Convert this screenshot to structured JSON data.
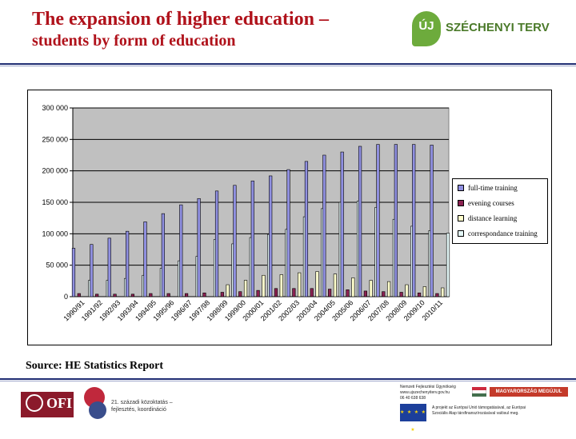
{
  "header": {
    "title_line1": "The expansion of higher education –",
    "title_line2": "students by form of education",
    "brand_mark": "ÚJ",
    "brand_name": "SZÉCHENYI TERV"
  },
  "source_text": "Source: HE Statistics Report",
  "footer": {
    "ofi_text": "OFI",
    "k21_line1": "21. századi közoktatás –",
    "k21_line2": "fejlesztés, koordináció",
    "nfu_lines": [
      "Nemzeti Fejlesztési Ügynökség",
      "www.ujszechenyiterv.gov.hu",
      "06 40 638 638"
    ],
    "hu_banner": "MAGYARORSZÁG MEGÚJUL",
    "hu_flag_colors": [
      "#cd2a3e",
      "#ffffff",
      "#436f4d"
    ],
    "eu_stars": "★ ★ ★ ★ ★",
    "eu_lines": [
      "A projekt az Európai Unió támogatásával, az Európai",
      "Szociális Alap társfinanszírozásával valósul meg."
    ]
  },
  "chart_data": {
    "type": "bar",
    "title": "",
    "xlabel": "",
    "ylabel": "",
    "ylim": [
      0,
      300000
    ],
    "yticks": [
      0,
      50000,
      100000,
      150000,
      200000,
      250000,
      300000
    ],
    "ytick_labels": [
      "0",
      "50 000",
      "100 000",
      "150 000",
      "200 000",
      "250 000",
      "300 000"
    ],
    "grid": "horizontal",
    "plot_background": "#c0c0c0",
    "legend_position": "right",
    "categories": [
      "1990/91",
      "1991/92",
      "1992/93",
      "1993/94",
      "1994/95",
      "1995/96",
      "1996/97",
      "1997/98",
      "1998/99",
      "1999/00",
      "2000/01",
      "2001/02",
      "2002/03",
      "2003/04",
      "2004/05",
      "2005/06",
      "2006/07",
      "2007/08",
      "2008/09",
      "2009/10",
      "2010/11"
    ],
    "series": [
      {
        "name": "full-time training",
        "color": "#8f8fe0",
        "values": [
          77000,
          83000,
          93000,
          104000,
          119000,
          132000,
          146000,
          156000,
          168000,
          177000,
          184000,
          192000,
          202000,
          215000,
          225000,
          230000,
          239000,
          242000,
          242000,
          242000,
          241000
        ]
      },
      {
        "name": "evening courses",
        "color": "#8b2252",
        "values": [
          5000,
          4000,
          4000,
          4000,
          5000,
          5000,
          5000,
          6000,
          7000,
          8000,
          10000,
          13000,
          13000,
          13000,
          12000,
          11000,
          9000,
          8000,
          7000,
          6000,
          5000
        ]
      },
      {
        "name": "distance learning",
        "color": "#ffffcc",
        "values": [
          0,
          0,
          0,
          0,
          0,
          0,
          0,
          0,
          19000,
          26000,
          34000,
          35000,
          38000,
          40000,
          36000,
          30000,
          26000,
          24000,
          19000,
          16000,
          14000
        ]
      },
      {
        "name": "correspondance training",
        "color": "#e4f7f7",
        "values": [
          26000,
          26000,
          29000,
          34000,
          45000,
          57000,
          64000,
          91000,
          84000,
          94000,
          99000,
          107000,
          127000,
          140000,
          150000,
          152000,
          142000,
          123000,
          112000,
          105000,
          101000
        ]
      }
    ]
  }
}
